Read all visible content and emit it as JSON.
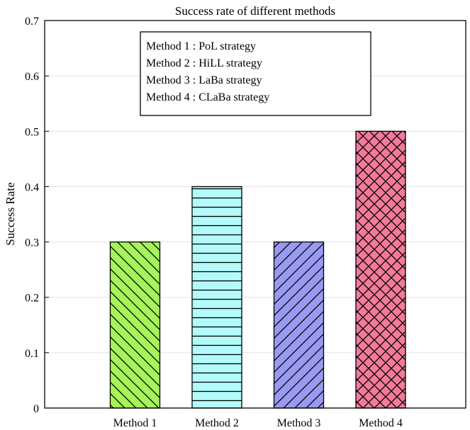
{
  "chart_data": {
    "type": "bar",
    "title": "Success rate of different methods",
    "xlabel": "",
    "ylabel": "Success Rate",
    "categories": [
      "Method 1",
      "Method 2",
      "Method 3",
      "Method 4"
    ],
    "values": [
      0.3,
      0.4,
      0.3,
      0.5
    ],
    "ylim": [
      0,
      0.7
    ],
    "yticks": [
      0,
      0.1,
      0.2,
      0.3,
      0.4,
      0.5,
      0.6,
      0.7
    ],
    "ytick_labels": [
      "0",
      "0.1",
      "0.2",
      "0.3",
      "0.4",
      "0.5",
      "0.6",
      "0.7"
    ],
    "grid": "horizontal",
    "legend_position": "top-center",
    "legend": [
      "Method 1 : PoL strategy",
      "Method 2 : HiLL strategy",
      "Method 3 : LaBa strategy",
      "Method 4 : CLaBa strategy"
    ],
    "bars": [
      {
        "color": "#a6f35a",
        "pattern": "diagonal-down"
      },
      {
        "color": "#b3fbfb",
        "pattern": "horizontal"
      },
      {
        "color": "#9999f2",
        "pattern": "diagonal-up"
      },
      {
        "color": "#f27a9a",
        "pattern": "crosshatch"
      }
    ]
  }
}
